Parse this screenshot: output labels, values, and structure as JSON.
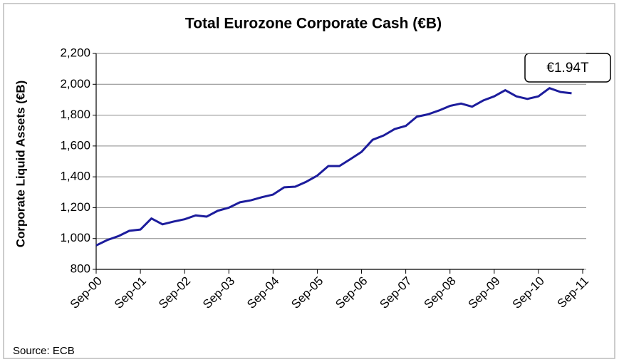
{
  "chart_data": {
    "type": "line",
    "title": "Total Eurozone Corporate Cash (€B)",
    "y_label": "Corporate Liquid Assets (€B)",
    "annotation": "€1.94T",
    "source": "Source: ECB",
    "categories": [
      "Sep-00",
      null,
      null,
      null,
      "Sep-01",
      null,
      null,
      null,
      "Sep-02",
      null,
      null,
      null,
      "Sep-03",
      null,
      null,
      null,
      "Sep-04",
      null,
      null,
      null,
      "Sep-05",
      null,
      null,
      null,
      "Sep-06",
      null,
      null,
      null,
      "Sep-07",
      null,
      null,
      null,
      "Sep-08",
      null,
      null,
      null,
      "Sep-09",
      null,
      null,
      null,
      "Sep-10",
      null,
      null,
      null,
      "Sep-11"
    ],
    "series": [
      {
        "name": "Corporate Liquid Assets",
        "color": "#1c1c9c",
        "values": [
          955,
          990,
          1015,
          1050,
          1058,
          1130,
          1092,
          1110,
          1125,
          1150,
          1142,
          1180,
          1200,
          1235,
          1248,
          1268,
          1285,
          1332,
          1336,
          1368,
          1408,
          1470,
          1470,
          1515,
          1562,
          1640,
          1668,
          1710,
          1730,
          1790,
          1805,
          1830,
          1860,
          1875,
          1855,
          1895,
          1922,
          1962,
          1922,
          1905,
          1922,
          1975,
          1950,
          1942,
          null
        ]
      }
    ],
    "ylim": [
      800,
      2200
    ],
    "yticks": [
      800,
      {
        "value": 1000,
        "label": "1,000"
      },
      {
        "value": 1200,
        "label": "1,200"
      },
      {
        "value": 1400,
        "label": "1,400"
      },
      {
        "value": 1600,
        "label": "1,600"
      },
      {
        "value": 1800,
        "label": "1,800"
      },
      {
        "value": 2000,
        "label": "2,000"
      },
      {
        "value": 2200,
        "label": "2,200"
      }
    ],
    "grid": true
  }
}
